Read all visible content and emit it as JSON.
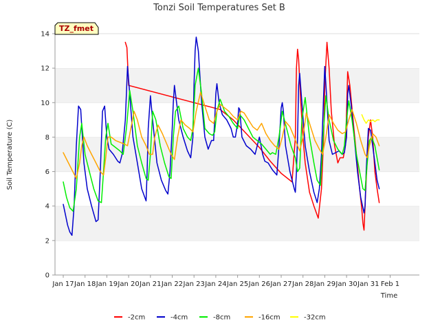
{
  "chart_data": {
    "type": "line",
    "title": "Tonzi Soil Temperatures Set B",
    "xlabel": "Time",
    "ylabel": "Soil Temperature (C)",
    "badge": "TZ_fmet",
    "ylim": [
      0,
      14
    ],
    "xlim": [
      0,
      16
    ],
    "y_ticks": [
      0,
      2,
      4,
      6,
      8,
      10,
      12,
      14
    ],
    "x_ticks": [
      {
        "pos": 0,
        "label": "Jan 17"
      },
      {
        "pos": 1,
        "label": "Jan 18"
      },
      {
        "pos": 2,
        "label": "Jan 19"
      },
      {
        "pos": 3,
        "label": "Jan 20"
      },
      {
        "pos": 4,
        "label": "Jan 21"
      },
      {
        "pos": 5,
        "label": "Jan 22"
      },
      {
        "pos": 6,
        "label": "Jan 23"
      },
      {
        "pos": 7,
        "label": "Jan 24"
      },
      {
        "pos": 8,
        "label": "Jan 25"
      },
      {
        "pos": 9,
        "label": "Jan 26"
      },
      {
        "pos": 10,
        "label": "Jan 27"
      },
      {
        "pos": 11,
        "label": "Jan 28"
      },
      {
        "pos": 12,
        "label": "Jan 29"
      },
      {
        "pos": 13,
        "label": "Jan 30"
      },
      {
        "pos": 14,
        "label": "Jan 31"
      },
      {
        "pos": 15,
        "label": "Feb 1"
      }
    ],
    "grid_bands": true,
    "legend_position": "bottom",
    "series": [
      {
        "name": "-2cm",
        "color": "#ff0000",
        "x": [
          2.85,
          2.92,
          3.0,
          7.2,
          7.8,
          8.4,
          9.0,
          9.5,
          10.0,
          10.5,
          10.65,
          10.7,
          10.75,
          10.8,
          10.9,
          11.0,
          11.1,
          11.3,
          11.5,
          11.7,
          11.85,
          11.95,
          12.0,
          12.1,
          12.2,
          12.3,
          12.45,
          12.6,
          12.7,
          12.85,
          12.95,
          13.0,
          13.05,
          13.15,
          13.3,
          13.45,
          13.6,
          13.7,
          13.75,
          13.8,
          13.9,
          14.0,
          14.1,
          14.2,
          14.3,
          14.4,
          14.5
        ],
        "y": [
          13.5,
          13.2,
          11.0,
          9.6,
          9.0,
          8.2,
          7.4,
          6.6,
          5.9,
          5.4,
          8.0,
          12.0,
          13.1,
          12.5,
          10.0,
          8.0,
          6.5,
          4.8,
          4.0,
          3.3,
          5.0,
          8.0,
          11.0,
          13.5,
          12.0,
          9.5,
          7.5,
          6.5,
          6.8,
          6.8,
          7.5,
          9.5,
          11.8,
          11.0,
          9.0,
          7.0,
          5.0,
          3.8,
          3.0,
          2.6,
          5.5,
          8.0,
          9.0,
          8.0,
          6.0,
          5.0,
          4.2
        ]
      },
      {
        "name": "-4cm",
        "color": "#0000cc",
        "x": [
          0.0,
          0.1,
          0.2,
          0.3,
          0.4,
          0.5,
          0.6,
          0.7,
          0.8,
          0.95,
          1.1,
          1.3,
          1.5,
          1.6,
          1.7,
          1.8,
          1.9,
          2.0,
          2.1,
          2.3,
          2.5,
          2.6,
          2.7,
          2.85,
          2.95,
          3.05,
          3.2,
          3.4,
          3.6,
          3.8,
          3.85,
          3.9,
          4.0,
          4.1,
          4.3,
          4.5,
          4.7,
          4.8,
          4.9,
          5.0,
          5.05,
          5.1,
          5.3,
          5.5,
          5.7,
          5.85,
          5.95,
          6.0,
          6.05,
          6.1,
          6.2,
          6.35,
          6.5,
          6.65,
          6.8,
          6.9,
          6.95,
          7.0,
          7.05,
          7.15,
          7.3,
          7.5,
          7.7,
          7.8,
          7.9,
          8.0,
          8.05,
          8.1,
          8.2,
          8.4,
          8.6,
          8.8,
          9.0,
          9.15,
          9.25,
          9.4,
          9.6,
          9.8,
          9.9,
          10.0,
          10.05,
          10.1,
          10.2,
          10.4,
          10.6,
          10.65,
          10.7,
          10.75,
          10.8,
          10.85,
          10.95,
          11.1,
          11.3,
          11.5,
          11.65,
          11.75,
          11.85,
          11.95,
          12.0,
          12.1,
          12.2,
          12.35,
          12.5,
          12.65,
          12.8,
          12.9,
          13.0,
          13.05,
          13.1,
          13.2,
          13.35,
          13.5,
          13.65,
          13.8,
          13.85,
          13.9,
          14.0,
          14.1,
          14.2,
          14.3,
          14.4,
          14.5
        ],
        "y": [
          4.1,
          3.5,
          2.9,
          2.5,
          2.3,
          4.0,
          7.5,
          9.8,
          9.6,
          6.5,
          5.0,
          4.0,
          3.1,
          3.2,
          6.0,
          9.5,
          9.8,
          8.0,
          7.3,
          7.0,
          6.6,
          6.5,
          7.0,
          9.0,
          12.1,
          10.5,
          8.0,
          6.5,
          5.0,
          4.3,
          6.0,
          8.5,
          10.4,
          9.0,
          6.5,
          5.5,
          4.9,
          4.7,
          6.0,
          8.5,
          10.0,
          11.0,
          9.0,
          8.0,
          7.2,
          6.8,
          8.0,
          11.0,
          13.0,
          13.8,
          13.0,
          10.0,
          8.0,
          7.3,
          7.8,
          7.8,
          9.0,
          10.5,
          11.1,
          10.0,
          9.3,
          9.0,
          8.5,
          8.0,
          8.0,
          8.8,
          9.7,
          9.6,
          8.0,
          7.5,
          7.3,
          7.0,
          8.0,
          7.0,
          6.6,
          6.5,
          6.1,
          5.8,
          7.5,
          9.7,
          10.0,
          9.5,
          7.5,
          6.0,
          5.0,
          4.8,
          6.0,
          8.0,
          11.0,
          11.7,
          10.0,
          7.5,
          6.0,
          4.8,
          4.2,
          5.0,
          7.0,
          10.5,
          12.1,
          10.0,
          7.8,
          7.0,
          7.1,
          7.2,
          7.0,
          7.1,
          8.0,
          10.5,
          11.0,
          10.0,
          8.0,
          6.0,
          4.5,
          3.6,
          4.0,
          6.0,
          8.5,
          8.4,
          7.5,
          6.5,
          5.5,
          5.0
        ]
      },
      {
        "name": "-8cm",
        "color": "#00ee00",
        "x": [
          0.0,
          0.15,
          0.3,
          0.45,
          0.6,
          0.75,
          0.85,
          1.0,
          1.2,
          1.4,
          1.6,
          1.75,
          1.85,
          1.95,
          2.05,
          2.2,
          2.4,
          2.6,
          2.75,
          2.9,
          3.05,
          3.2,
          3.4,
          3.6,
          3.8,
          3.9,
          4.0,
          4.1,
          4.25,
          4.45,
          4.65,
          4.85,
          4.95,
          5.05,
          5.15,
          5.3,
          5.5,
          5.7,
          5.85,
          5.95,
          6.05,
          6.2,
          6.35,
          6.5,
          6.7,
          6.85,
          6.95,
          7.05,
          7.2,
          7.4,
          7.6,
          7.8,
          8.0,
          8.1,
          8.3,
          8.5,
          8.7,
          8.9,
          9.1,
          9.3,
          9.5,
          9.6,
          9.75,
          9.9,
          10.05,
          10.25,
          10.45,
          10.65,
          10.75,
          10.85,
          10.95,
          11.1,
          11.3,
          11.5,
          11.65,
          11.8,
          11.95,
          12.05,
          12.2,
          12.4,
          12.6,
          12.8,
          12.9,
          13.0,
          13.1,
          13.25,
          13.45,
          13.6,
          13.75,
          13.85,
          13.95,
          14.05,
          14.15,
          14.3,
          14.5
        ],
        "y": [
          5.4,
          4.5,
          3.9,
          3.7,
          5.0,
          8.0,
          8.8,
          7.0,
          6.0,
          5.0,
          4.3,
          4.2,
          6.0,
          8.0,
          8.8,
          7.6,
          7.4,
          7.2,
          7.0,
          8.5,
          10.7,
          9.5,
          7.5,
          6.5,
          5.6,
          5.5,
          7.0,
          9.5,
          9.0,
          7.5,
          6.5,
          5.7,
          5.6,
          8.0,
          9.5,
          9.8,
          8.5,
          8.0,
          7.8,
          8.5,
          11.0,
          12.0,
          10.5,
          8.5,
          8.2,
          8.1,
          8.3,
          9.5,
          10.2,
          9.5,
          9.2,
          8.8,
          8.5,
          9.3,
          9.0,
          8.5,
          8.0,
          7.8,
          7.6,
          7.3,
          7.0,
          7.1,
          7.0,
          8.0,
          9.5,
          8.5,
          7.5,
          6.8,
          6.0,
          6.2,
          9.0,
          10.3,
          8.0,
          6.5,
          5.5,
          5.2,
          8.5,
          10.4,
          9.0,
          7.8,
          7.3,
          7.0,
          7.5,
          9.0,
          10.1,
          9.0,
          7.0,
          6.0,
          5.0,
          4.9,
          6.5,
          7.8,
          8.0,
          7.5,
          6.1
        ]
      },
      {
        "name": "-16cm",
        "color": "#ffa500",
        "x": [
          0.0,
          0.2,
          0.4,
          0.6,
          0.75,
          0.85,
          0.95,
          1.1,
          1.3,
          1.5,
          1.7,
          1.85,
          1.95,
          2.05,
          2.2,
          2.4,
          2.6,
          2.8,
          2.95,
          3.1,
          3.25,
          3.4,
          3.6,
          3.8,
          3.95,
          4.1,
          4.2,
          4.35,
          4.55,
          4.75,
          4.95,
          5.1,
          5.25,
          5.4,
          5.6,
          5.8,
          5.95,
          6.1,
          6.3,
          6.5,
          6.7,
          6.9,
          7.05,
          7.2,
          7.4,
          7.6,
          7.8,
          8.0,
          8.15,
          8.3,
          8.5,
          8.7,
          8.9,
          9.1,
          9.3,
          9.5,
          9.7,
          9.9,
          10.05,
          10.2,
          10.4,
          10.6,
          10.75,
          10.85,
          11.0,
          11.15,
          11.35,
          11.55,
          11.75,
          11.9,
          12.05,
          12.2,
          12.4,
          12.6,
          12.8,
          12.95,
          13.1,
          13.25,
          13.45,
          13.65,
          13.85,
          13.95,
          14.05,
          14.2,
          14.35,
          14.5
        ],
        "y": [
          7.1,
          6.6,
          6.1,
          5.6,
          6.5,
          7.5,
          8.0,
          7.5,
          7.0,
          6.5,
          6.0,
          5.8,
          6.8,
          8.0,
          8.0,
          7.8,
          7.7,
          7.6,
          7.5,
          8.5,
          9.5,
          9.0,
          8.0,
          7.5,
          7.0,
          7.0,
          8.0,
          8.7,
          8.2,
          7.6,
          7.0,
          6.7,
          8.0,
          9.0,
          8.7,
          8.5,
          8.3,
          9.5,
          10.6,
          9.8,
          9.0,
          8.8,
          9.5,
          9.9,
          9.7,
          9.5,
          9.2,
          9.0,
          9.5,
          9.4,
          9.0,
          8.6,
          8.4,
          8.8,
          8.2,
          7.8,
          7.5,
          7.3,
          8.0,
          8.9,
          8.6,
          8.0,
          7.5,
          7.2,
          8.0,
          9.4,
          8.6,
          7.8,
          7.3,
          7.0,
          8.0,
          9.3,
          8.8,
          8.4,
          8.2,
          8.3,
          9.0,
          9.6,
          8.8,
          7.8,
          7.0,
          6.8,
          7.5,
          8.2,
          8.0,
          7.5
        ]
      },
      {
        "name": "-32cm",
        "color": "#ffff00",
        "x": [
          13.7,
          13.8,
          13.9,
          14.0,
          14.1,
          14.2,
          14.3,
          14.4,
          14.5
        ],
        "y": [
          9.3,
          9.0,
          8.8,
          9.0,
          8.9,
          9.0,
          8.9,
          9.0,
          9.0
        ]
      }
    ]
  }
}
